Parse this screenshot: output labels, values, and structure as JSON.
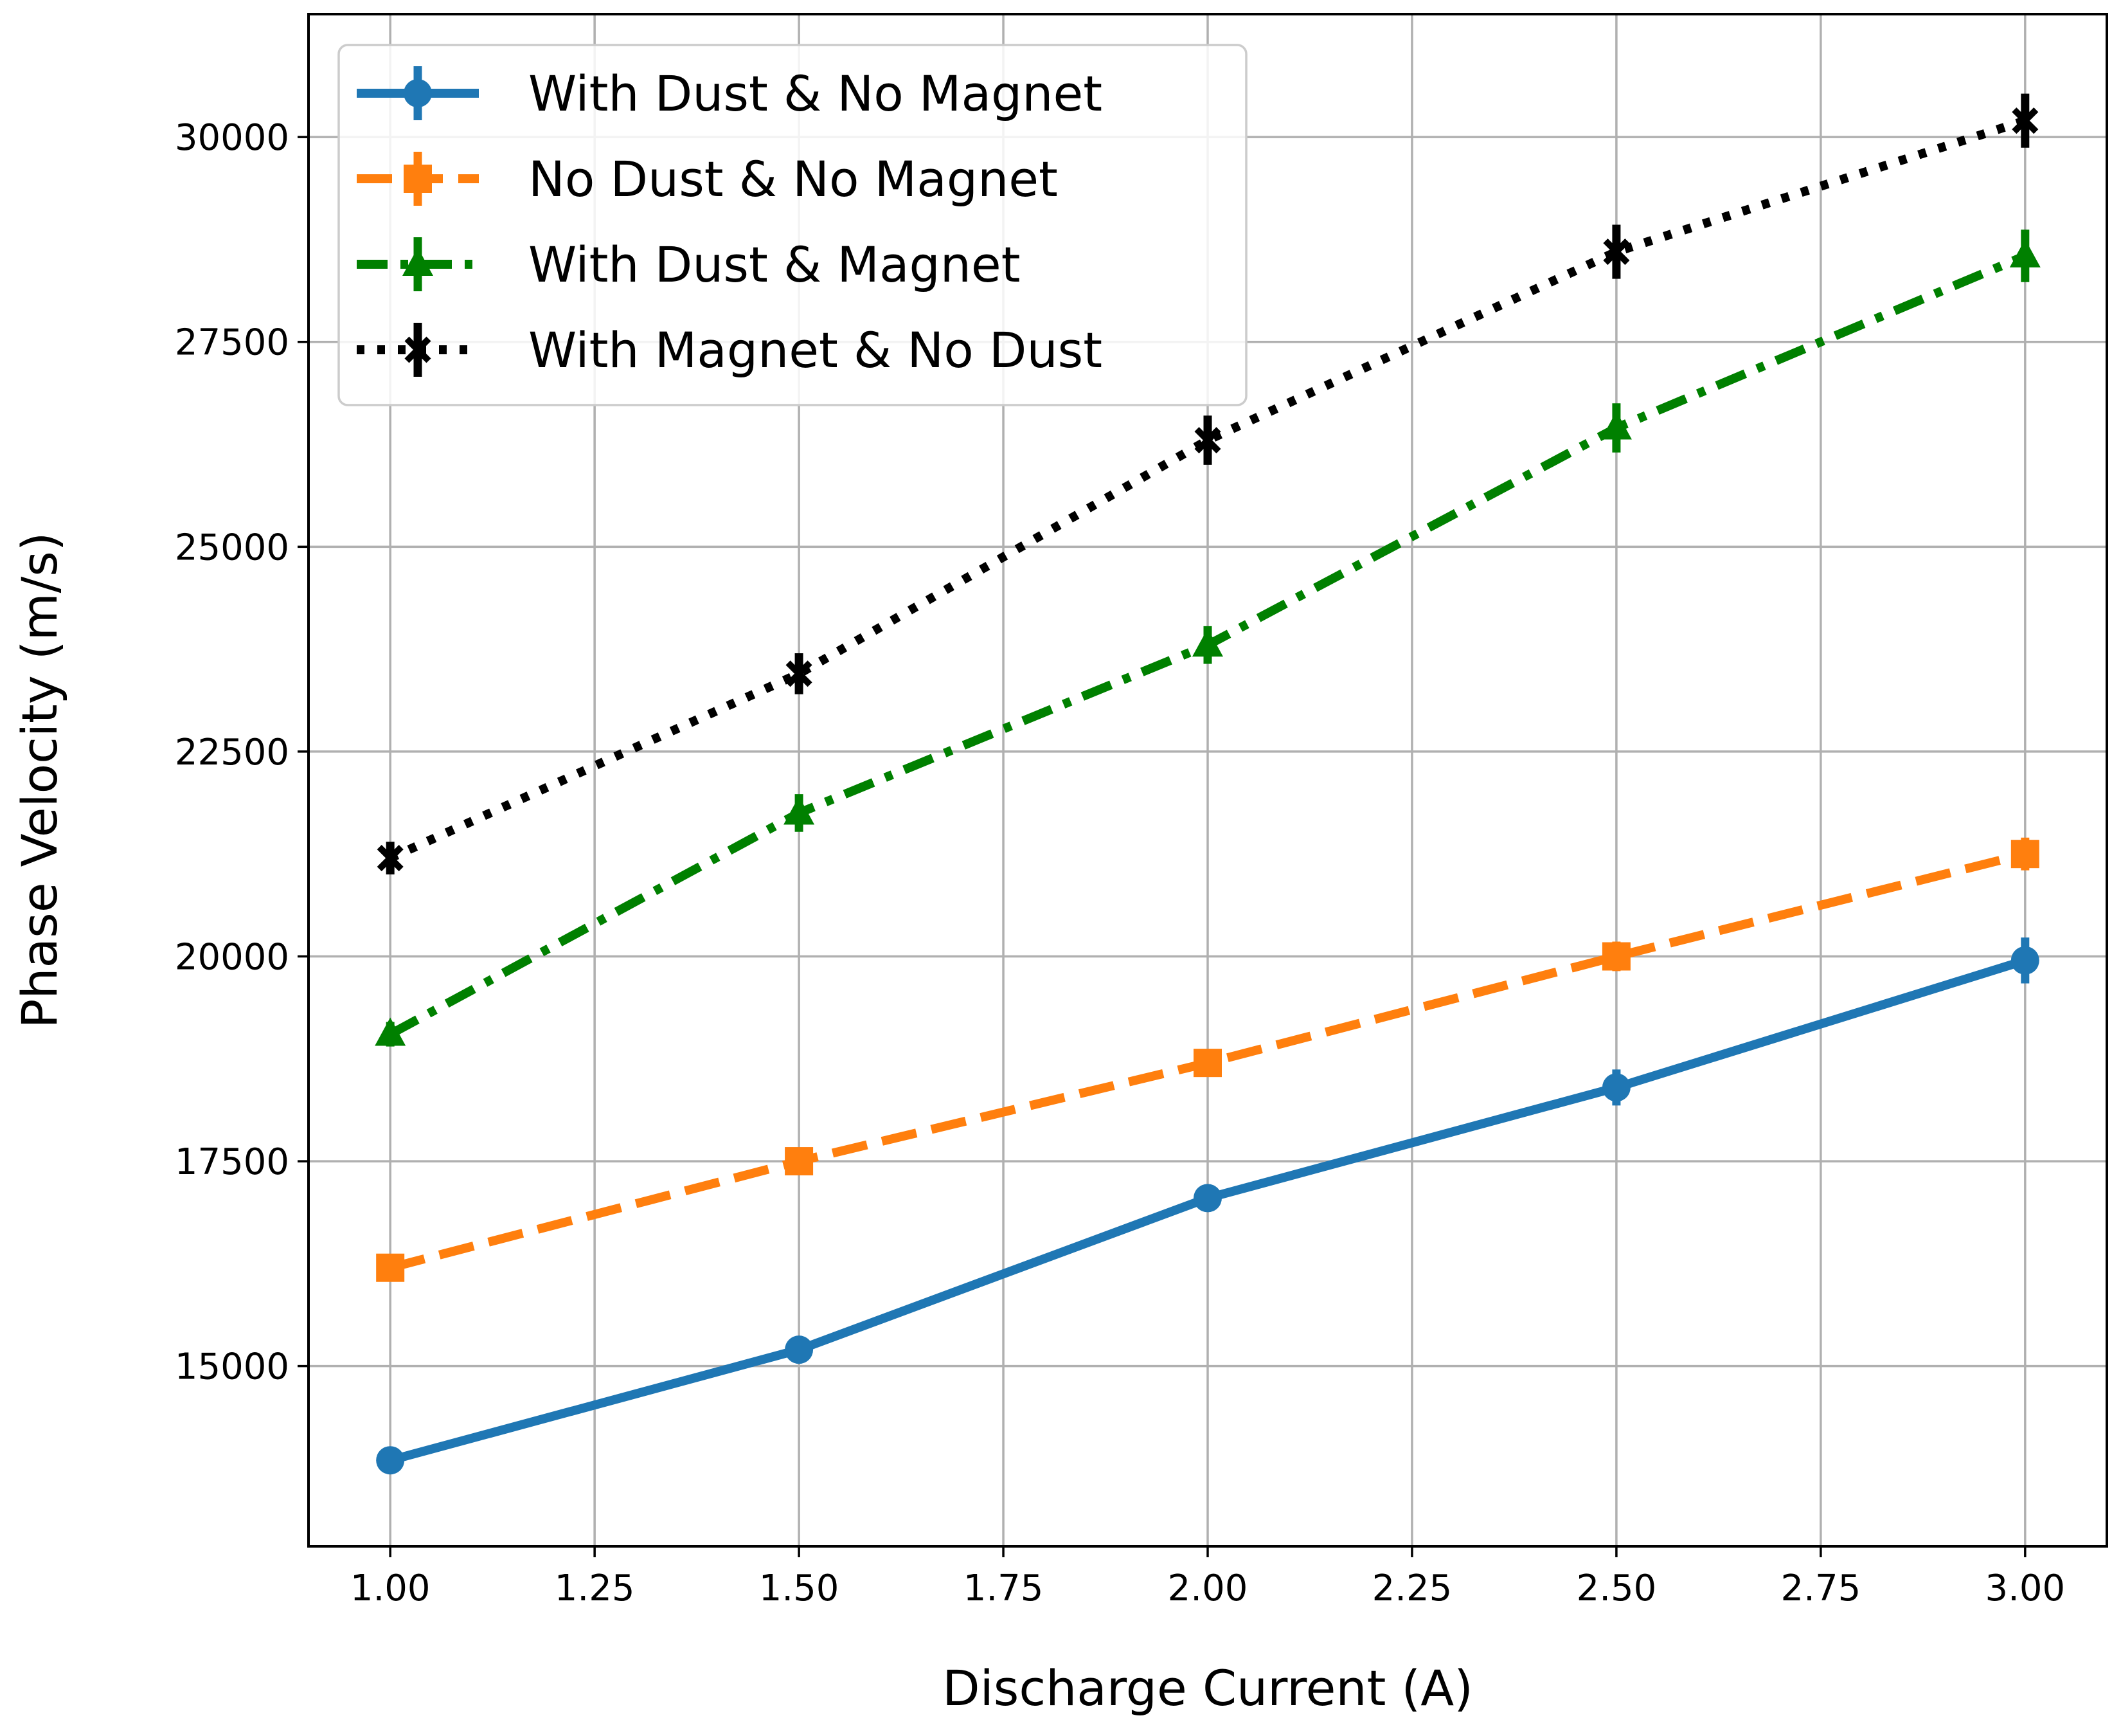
{
  "chart_data": {
    "type": "line",
    "title": "",
    "xlabel": "Discharge Current (A)",
    "ylabel": "Phase Velocity (m/s)",
    "xlim": [
      0.9,
      3.1
    ],
    "ylim": [
      12800,
      31500
    ],
    "grid": true,
    "legend_position": "top-left",
    "x": [
      1.0,
      1.5,
      2.0,
      2.5,
      3.0
    ],
    "x_tick_labels": [
      "1.00",
      "1.25",
      "1.50",
      "1.75",
      "2.00",
      "2.25",
      "2.50",
      "2.75",
      "3.00"
    ],
    "y_tick_labels": [
      "15000",
      "17500",
      "20000",
      "22500",
      "25000",
      "27500",
      "30000"
    ],
    "series": [
      {
        "name": "With Dust & No Magnet",
        "color": "#1f77b4",
        "line_style": "solid",
        "marker": "circle",
        "values": [
          13850,
          15200,
          17050,
          18400,
          19950
        ],
        "errors": [
          120,
          150,
          150,
          220,
          280
        ]
      },
      {
        "name": "No Dust & No Magnet",
        "color": "#ff7f0e",
        "line_style": "dashed",
        "marker": "square",
        "values": [
          16200,
          17500,
          18700,
          20000,
          21250
        ],
        "errors": [
          150,
          150,
          150,
          180,
          200
        ]
      },
      {
        "name": "With Dust & Magnet",
        "color": "#008000",
        "line_style": "dashdot",
        "marker": "triangle",
        "values": [
          19050,
          21750,
          23800,
          26450,
          28550
        ],
        "errors": [
          150,
          230,
          230,
          300,
          320
        ]
      },
      {
        "name": "With Magnet & No Dust",
        "color": "#000000",
        "line_style": "dotted",
        "marker": "x",
        "values": [
          21200,
          23450,
          26300,
          28600,
          30200
        ],
        "errors": [
          200,
          250,
          300,
          330,
          330
        ]
      }
    ]
  }
}
